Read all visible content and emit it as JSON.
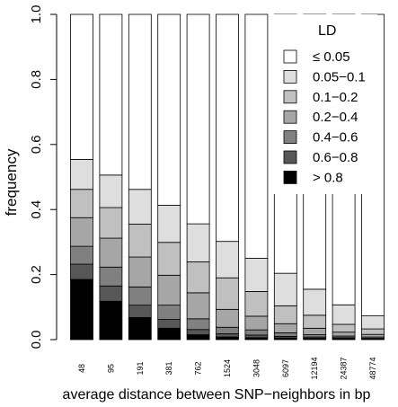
{
  "chart_data": {
    "type": "bar",
    "stacked": true,
    "title": "",
    "xlabel": "average distance between SNP−neighbors in bp",
    "ylabel": "frequency",
    "ylim": [
      0,
      1
    ],
    "yticks": [
      "0.0",
      "0.2",
      "0.4",
      "0.6",
      "0.8",
      "1.0"
    ],
    "categories": [
      "48",
      "95",
      "191",
      "381",
      "762",
      "1524",
      "3048",
      "6097",
      "12194",
      "24387",
      "48774"
    ],
    "legend_title": "LD",
    "legend_position": "top-right",
    "series": [
      {
        "name": "> 0.8",
        "color": "#000000",
        "values": [
          0.185,
          0.118,
          0.068,
          0.035,
          0.015,
          0.008,
          0.006,
          0.005,
          0.004,
          0.003,
          0.002
        ]
      },
      {
        "name": "0.6−0.8",
        "color": "#575757",
        "values": [
          0.047,
          0.047,
          0.038,
          0.027,
          0.016,
          0.01,
          0.008,
          0.005,
          0.004,
          0.003,
          0.002
        ]
      },
      {
        "name": "0.4−0.6",
        "color": "#808080",
        "values": [
          0.055,
          0.058,
          0.056,
          0.044,
          0.033,
          0.02,
          0.016,
          0.011,
          0.007,
          0.005,
          0.004
        ]
      },
      {
        "name": "0.2−0.4",
        "color": "#a6a6a6",
        "values": [
          0.088,
          0.089,
          0.092,
          0.092,
          0.08,
          0.055,
          0.042,
          0.028,
          0.02,
          0.012,
          0.008
        ]
      },
      {
        "name": "0.1−0.2",
        "color": "#c0c0c0",
        "values": [
          0.087,
          0.094,
          0.101,
          0.101,
          0.095,
          0.097,
          0.076,
          0.055,
          0.04,
          0.024,
          0.017
        ]
      },
      {
        "name": "0.05−0.1",
        "color": "#dedede",
        "values": [
          0.092,
          0.1,
          0.107,
          0.114,
          0.117,
          0.112,
          0.102,
          0.1,
          0.08,
          0.06,
          0.04
        ]
      },
      {
        "name": "≤ 0.05",
        "color": "#ffffff",
        "values": [
          0.446,
          0.494,
          0.538,
          0.587,
          0.644,
          0.698,
          0.75,
          0.796,
          0.845,
          0.893,
          0.927
        ]
      }
    ]
  }
}
